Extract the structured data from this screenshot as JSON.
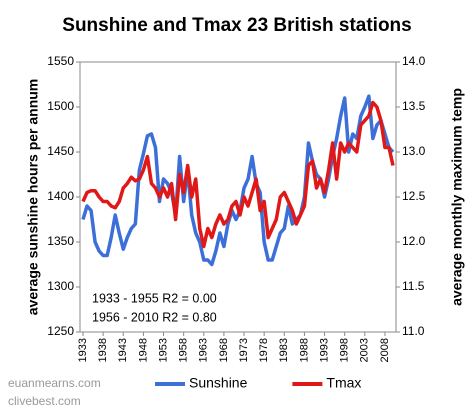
{
  "chart_data": {
    "type": "line",
    "title": "Sunshine and Tmax 23 British stations",
    "y_label": "average sunshine hours per annum",
    "y2_label": "average monthly maximum temp",
    "annotations": [
      "1933 - 1955 R2 = 0.00",
      "1956 - 2010 R2 = 0.80"
    ],
    "credits": [
      "euanmearns.com",
      "clivebest.com"
    ],
    "x": [
      1933,
      1934,
      1935,
      1936,
      1937,
      1938,
      1939,
      1940,
      1941,
      1942,
      1943,
      1944,
      1945,
      1946,
      1947,
      1948,
      1949,
      1950,
      1951,
      1952,
      1953,
      1954,
      1955,
      1956,
      1957,
      1958,
      1959,
      1960,
      1961,
      1962,
      1963,
      1964,
      1965,
      1966,
      1967,
      1968,
      1969,
      1970,
      1971,
      1972,
      1973,
      1974,
      1975,
      1976,
      1977,
      1978,
      1979,
      1980,
      1981,
      1982,
      1983,
      1984,
      1985,
      1986,
      1987,
      1988,
      1989,
      1990,
      1991,
      1992,
      1993,
      1994,
      1995,
      1996,
      1997,
      1998,
      1999,
      2000,
      2001,
      2002,
      2003,
      2004,
      2005,
      2006,
      2007,
      2008,
      2009,
      2010
    ],
    "xlim": [
      1933,
      2010
    ],
    "xticks": [
      1933,
      1938,
      1943,
      1948,
      1953,
      1958,
      1963,
      1968,
      1973,
      1978,
      1983,
      1988,
      1993,
      1998,
      2003,
      2008
    ],
    "ylim": [
      1250,
      1550
    ],
    "yticks": [
      1250,
      1300,
      1350,
      1400,
      1450,
      1500,
      1550
    ],
    "y2lim": [
      11,
      14
    ],
    "y2ticks": [
      {
        "value": 11,
        "label": "11.0"
      },
      11.5,
      {
        "value": 12,
        "label": "12.0"
      },
      12.5,
      {
        "value": 13,
        "label": "13.0"
      },
      13.5,
      {
        "value": 14,
        "label": "14.0"
      }
    ],
    "grid": false,
    "legend": "bottom",
    "series": [
      {
        "name": "Sunshine",
        "color": "#3c6fd8",
        "axis": "y",
        "values": [
          1375,
          1390,
          1385,
          1350,
          1340,
          1335,
          1335,
          1355,
          1380,
          1360,
          1342,
          1355,
          1365,
          1370,
          1430,
          1448,
          1468,
          1470,
          1455,
          1395,
          1420,
          1415,
          1405,
          1380,
          1445,
          1395,
          1430,
          1380,
          1360,
          1350,
          1330,
          1330,
          1325,
          1340,
          1360,
          1345,
          1370,
          1385,
          1375,
          1385,
          1410,
          1420,
          1445,
          1415,
          1405,
          1350,
          1330,
          1330,
          1345,
          1360,
          1365,
          1390,
          1370,
          1375,
          1380,
          1400,
          1460,
          1440,
          1425,
          1420,
          1400,
          1420,
          1445,
          1465,
          1490,
          1510,
          1450,
          1470,
          1465,
          1490,
          1500,
          1512,
          1465,
          1480,
          1485,
          1470,
          1455,
          1450
        ]
      },
      {
        "name": "Tmax",
        "color": "#e01818",
        "axis": "y2",
        "values": [
          12.45,
          12.55,
          12.57,
          12.57,
          12.5,
          12.45,
          12.45,
          12.4,
          12.38,
          12.45,
          12.6,
          12.65,
          12.72,
          12.68,
          12.7,
          12.8,
          12.95,
          12.65,
          12.6,
          12.5,
          12.6,
          12.5,
          12.65,
          12.25,
          12.75,
          12.55,
          12.85,
          12.5,
          12.7,
          12.15,
          11.95,
          12.15,
          12.05,
          12.2,
          12.3,
          12.2,
          12.25,
          12.4,
          12.45,
          12.3,
          12.5,
          12.4,
          12.55,
          12.7,
          12.35,
          12.45,
          12.05,
          12.15,
          12.25,
          12.5,
          12.55,
          12.45,
          12.35,
          12.2,
          12.3,
          12.4,
          12.85,
          12.9,
          12.6,
          12.7,
          12.55,
          12.8,
          13.1,
          12.7,
          13.1,
          13.0,
          13.1,
          13.05,
          13.0,
          13.3,
          13.35,
          13.4,
          13.55,
          13.5,
          13.35,
          13.05,
          13.05,
          12.85
        ]
      }
    ]
  }
}
